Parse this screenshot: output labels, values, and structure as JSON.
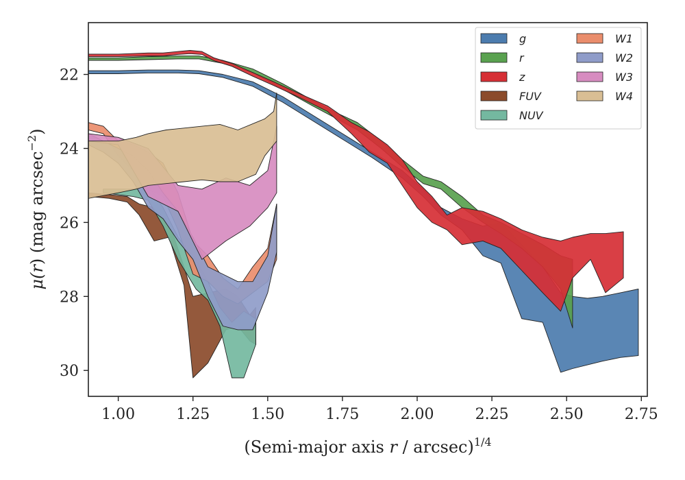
{
  "chart_data": {
    "type": "area",
    "xlabel_pre": "(Semi-major axis ",
    "xlabel_var": "r",
    "xlabel_post": " / arcsec)",
    "xlabel_sup": "1/4",
    "ylabel_pre": "μ(",
    "ylabel_var": "r",
    "ylabel_mid": ") (mag arcsec",
    "ylabel_sup": "−2",
    "ylabel_post": ")",
    "xlim": [
      0.9,
      2.77
    ],
    "ylim": [
      30.7,
      20.6
    ],
    "y_inverted": true,
    "xticks": [
      1.0,
      1.25,
      1.5,
      1.75,
      2.0,
      2.25,
      2.5,
      2.75
    ],
    "xtick_labels": [
      "1.00",
      "1.25",
      "1.50",
      "1.75",
      "2.00",
      "2.25",
      "2.50",
      "2.75"
    ],
    "yticks": [
      22,
      24,
      26,
      28,
      30
    ],
    "ytick_labels": [
      "22",
      "24",
      "26",
      "28",
      "30"
    ],
    "grid": false,
    "legend": "top-right",
    "legend_columns": 2,
    "series": [
      {
        "name": "g",
        "color": "#4c7cae",
        "x": [
          0.9,
          1.0,
          1.1,
          1.2,
          1.27,
          1.35,
          1.45,
          1.55,
          1.65,
          1.75,
          1.85,
          1.95,
          2.02,
          2.08,
          2.15,
          2.22,
          2.28,
          2.35,
          2.42,
          2.48,
          2.52,
          2.57,
          2.62,
          2.68,
          2.74
        ],
        "y_upper": [
          21.9,
          21.9,
          21.88,
          21.88,
          21.9,
          22.0,
          22.2,
          22.6,
          23.1,
          23.6,
          24.1,
          24.6,
          25.1,
          25.6,
          25.9,
          26.1,
          26.0,
          26.6,
          27.2,
          27.9,
          28.0,
          28.05,
          28.0,
          27.9,
          27.8
        ],
        "y_lower": [
          21.98,
          21.98,
          21.96,
          21.96,
          21.98,
          22.08,
          22.32,
          22.75,
          23.25,
          23.75,
          24.25,
          24.8,
          25.3,
          25.8,
          26.2,
          26.9,
          27.1,
          28.6,
          28.7,
          30.05,
          29.95,
          29.85,
          29.75,
          29.65,
          29.6
        ]
      },
      {
        "name": "r",
        "color": "#59a14f",
        "x": [
          0.9,
          1.0,
          1.1,
          1.2,
          1.27,
          1.35,
          1.45,
          1.55,
          1.65,
          1.72,
          1.8,
          1.88,
          1.95,
          2.02,
          2.08,
          2.15,
          2.22,
          2.28,
          2.35,
          2.42,
          2.48,
          2.52
        ],
        "y_upper": [
          21.55,
          21.55,
          21.52,
          21.5,
          21.5,
          21.62,
          21.85,
          22.25,
          22.7,
          23.0,
          23.3,
          23.8,
          24.3,
          24.75,
          24.9,
          25.3,
          25.8,
          26.0,
          26.3,
          26.6,
          26.9,
          27.0
        ],
        "y_lower": [
          21.62,
          21.62,
          21.6,
          21.58,
          21.58,
          21.7,
          21.95,
          22.4,
          22.85,
          23.15,
          23.5,
          24.0,
          24.5,
          24.95,
          25.1,
          25.6,
          26.0,
          26.3,
          26.7,
          27.2,
          27.8,
          28.85
        ]
      },
      {
        "name": "z",
        "color": "#d62f35",
        "x": [
          0.9,
          1.0,
          1.1,
          1.15,
          1.2,
          1.24,
          1.28,
          1.32,
          1.38,
          1.45,
          1.52,
          1.6,
          1.7,
          1.78,
          1.84,
          1.9,
          1.95,
          2.0,
          2.05,
          2.1,
          2.15,
          2.22,
          2.28,
          2.35,
          2.42,
          2.48,
          2.52,
          2.58,
          2.63,
          2.69
        ],
        "y_upper": [
          21.45,
          21.45,
          21.42,
          21.42,
          21.38,
          21.35,
          21.38,
          21.55,
          21.7,
          21.95,
          22.2,
          22.5,
          22.85,
          23.3,
          23.55,
          23.9,
          24.3,
          24.9,
          25.3,
          25.8,
          25.6,
          25.7,
          25.9,
          26.2,
          26.4,
          26.5,
          26.4,
          26.3,
          26.3,
          26.25
        ],
        "y_lower": [
          21.52,
          21.52,
          21.5,
          21.5,
          21.46,
          21.44,
          21.46,
          21.63,
          21.78,
          22.05,
          22.3,
          22.6,
          23.0,
          23.6,
          24.1,
          24.4,
          25.0,
          25.6,
          26.0,
          26.2,
          26.6,
          26.5,
          26.7,
          27.3,
          27.9,
          28.4,
          27.5,
          27.0,
          27.9,
          27.5
        ]
      },
      {
        "name": "FUV",
        "color": "#8b4b2b",
        "x": [
          0.9,
          0.97,
          1.03,
          1.07,
          1.12,
          1.17,
          1.22,
          1.25,
          1.3,
          1.36,
          1.4,
          1.44,
          1.46
        ],
        "y_upper": [
          25.2,
          25.25,
          25.3,
          25.5,
          25.6,
          26.0,
          27.2,
          28.0,
          27.9,
          27.8,
          28.0,
          28.5,
          28.3
        ],
        "y_lower": [
          25.3,
          25.35,
          25.45,
          25.8,
          26.5,
          26.4,
          27.7,
          30.2,
          29.8,
          28.9,
          28.8,
          29.2,
          29.3
        ]
      },
      {
        "name": "NUV",
        "color": "#74b8a0",
        "x": [
          0.95,
          1.05,
          1.1,
          1.15,
          1.2,
          1.26,
          1.3,
          1.34,
          1.38,
          1.42,
          1.46
        ],
        "y_upper": [
          25.1,
          25.1,
          25.0,
          25.6,
          26.4,
          27.0,
          27.6,
          28.3,
          28.7,
          28.4,
          28.6
        ],
        "y_lower": [
          25.2,
          25.3,
          25.4,
          26.1,
          27.0,
          27.8,
          28.1,
          28.8,
          30.2,
          30.2,
          29.3
        ]
      },
      {
        "name": "W1",
        "color": "#ea8d6c",
        "x": [
          0.9,
          0.95,
          1.0,
          1.05,
          1.1,
          1.15,
          1.2,
          1.25,
          1.3,
          1.35,
          1.4,
          1.45,
          1.5,
          1.53
        ],
        "y_upper": [
          23.3,
          23.4,
          23.8,
          23.9,
          24.1,
          24.4,
          25.2,
          26.5,
          26.9,
          27.5,
          27.8,
          27.2,
          26.7,
          25.5
        ],
        "y_lower": [
          23.5,
          23.6,
          24.2,
          24.6,
          25.1,
          25.3,
          26.2,
          27.4,
          27.6,
          28.0,
          28.2,
          27.9,
          27.6,
          27.0
        ]
      },
      {
        "name": "W2",
        "color": "#8f9cc9",
        "x": [
          0.9,
          0.95,
          1.0,
          1.05,
          1.1,
          1.15,
          1.2,
          1.25,
          1.3,
          1.35,
          1.4,
          1.45,
          1.5,
          1.53
        ],
        "y_upper": [
          23.6,
          23.8,
          24.0,
          24.2,
          24.6,
          25.2,
          25.7,
          26.4,
          27.2,
          27.4,
          27.6,
          27.6,
          26.9,
          25.5
        ],
        "y_lower": [
          23.9,
          24.1,
          24.4,
          24.9,
          25.6,
          25.9,
          26.5,
          27.0,
          28.0,
          28.8,
          28.9,
          28.9,
          27.9,
          26.8
        ]
      },
      {
        "name": "W3",
        "color": "#d78cc0",
        "x": [
          0.9,
          1.0,
          1.1,
          1.2,
          1.28,
          1.36,
          1.44,
          1.5,
          1.53
        ],
        "y_upper": [
          23.6,
          23.7,
          24.0,
          25.0,
          25.1,
          24.8,
          25.0,
          24.6,
          23.4
        ],
        "y_lower": [
          23.8,
          23.9,
          25.3,
          25.7,
          27.0,
          26.5,
          26.1,
          25.6,
          25.2
        ]
      },
      {
        "name": "W4",
        "color": "#d9be94",
        "x": [
          0.9,
          1.0,
          1.06,
          1.1,
          1.16,
          1.22,
          1.28,
          1.34,
          1.4,
          1.46,
          1.49,
          1.52,
          1.53
        ],
        "y_upper": [
          23.8,
          23.8,
          23.7,
          23.6,
          23.5,
          23.45,
          23.4,
          23.35,
          23.5,
          23.3,
          23.2,
          23.0,
          22.5
        ],
        "y_lower": [
          25.35,
          25.2,
          25.1,
          25.0,
          24.95,
          24.9,
          24.85,
          24.9,
          24.9,
          24.7,
          24.2,
          23.9,
          23.8
        ]
      }
    ]
  }
}
